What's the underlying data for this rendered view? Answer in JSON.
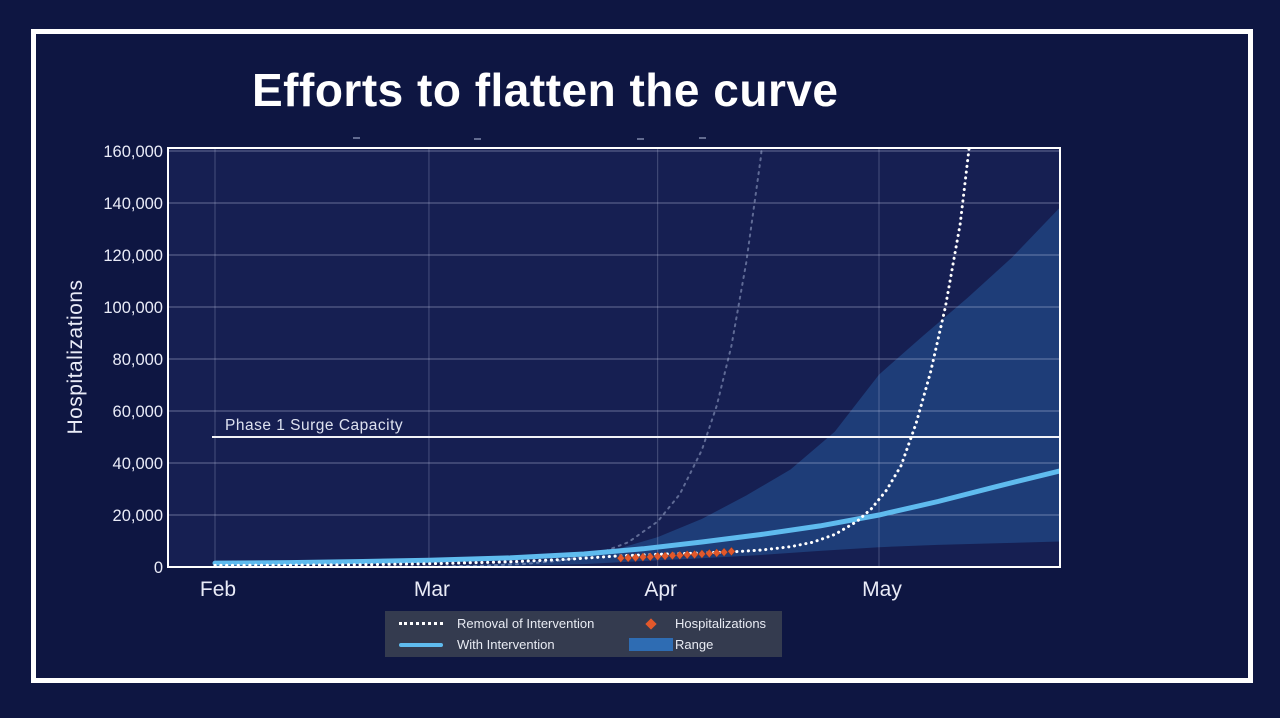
{
  "slide": {
    "title": "Efforts to flatten the curve"
  },
  "chart_data": {
    "type": "line",
    "title": "Efforts to flatten the curve",
    "xlabel": "",
    "ylabel": "Hospitalizations",
    "ylim": [
      0,
      160000
    ],
    "grid": true,
    "legend_position": "bottom",
    "y_ticks": [
      {
        "value": 0,
        "label": "0"
      },
      {
        "value": 20000,
        "label": "20,000"
      },
      {
        "value": 40000,
        "label": "40,000"
      },
      {
        "value": 60000,
        "label": "60,000"
      },
      {
        "value": 80000,
        "label": "80,000"
      },
      {
        "value": 100000,
        "label": "100,000"
      },
      {
        "value": 120000,
        "label": "120,000"
      },
      {
        "value": 140000,
        "label": "140,000"
      },
      {
        "value": 160000,
        "label": "160,000"
      }
    ],
    "x_ticks": [
      {
        "day": 0,
        "label": "Feb"
      },
      {
        "day": 29,
        "label": "Mar"
      },
      {
        "day": 60,
        "label": "Apr"
      },
      {
        "day": 90,
        "label": "May"
      }
    ],
    "surge_line": {
      "label": "Phase 1 Surge Capacity",
      "value": 50000
    },
    "series": [
      {
        "id": "range",
        "name": "Range",
        "type": "area",
        "upper": [
          [
            29,
            300
          ],
          [
            38,
            1200
          ],
          [
            46,
            3000
          ],
          [
            54,
            6500
          ],
          [
            60,
            11500
          ],
          [
            66,
            18500
          ],
          [
            72,
            27500
          ],
          [
            78,
            37500
          ],
          [
            84,
            52000
          ],
          [
            90,
            74000
          ],
          [
            96,
            89000
          ],
          [
            102,
            103500
          ],
          [
            108,
            119000
          ],
          [
            114.6,
            138500
          ]
        ],
        "lower": [
          [
            29,
            0
          ],
          [
            40,
            400
          ],
          [
            50,
            1100
          ],
          [
            58,
            2300
          ],
          [
            66,
            3400
          ],
          [
            74,
            4600
          ],
          [
            82,
            6200
          ],
          [
            90,
            7600
          ],
          [
            98,
            8500
          ],
          [
            106,
            9100
          ],
          [
            114.6,
            9800
          ]
        ]
      },
      {
        "id": "ghost_removal",
        "name": "Removal of Intervention (ghost)",
        "type": "line",
        "points": [
          [
            0,
            3
          ],
          [
            10,
            12
          ],
          [
            20,
            50
          ],
          [
            30,
            210
          ],
          [
            36,
            500
          ],
          [
            42,
            1200
          ],
          [
            47,
            2500
          ],
          [
            52,
            5200
          ],
          [
            56,
            9500
          ],
          [
            60,
            17500
          ],
          [
            63,
            28000
          ],
          [
            66,
            45000
          ],
          [
            68,
            62000
          ],
          [
            70,
            85000
          ],
          [
            72,
            117000
          ],
          [
            74,
            158000
          ],
          [
            74.8,
            185000
          ]
        ]
      },
      {
        "id": "with_intervention",
        "name": "With Intervention",
        "type": "line",
        "points": [
          [
            0,
            1500
          ],
          [
            10,
            1700
          ],
          [
            20,
            2100
          ],
          [
            29,
            2600
          ],
          [
            40,
            3500
          ],
          [
            50,
            5000
          ],
          [
            58,
            7000
          ],
          [
            66,
            9600
          ],
          [
            74,
            12500
          ],
          [
            82,
            15800
          ],
          [
            90,
            20000
          ],
          [
            98,
            25200
          ],
          [
            106,
            31000
          ],
          [
            114.6,
            37000
          ]
        ]
      },
      {
        "id": "removal",
        "name": "Removal of Intervention",
        "type": "line",
        "points": [
          [
            0,
            600
          ],
          [
            10,
            700
          ],
          [
            20,
            900
          ],
          [
            30,
            1300
          ],
          [
            40,
            2000
          ],
          [
            48,
            3000
          ],
          [
            55,
            4300
          ],
          [
            60,
            4900
          ],
          [
            65,
            5300
          ],
          [
            70,
            5800
          ],
          [
            74,
            6500
          ],
          [
            78,
            7800
          ],
          [
            81,
            9500
          ],
          [
            84,
            12500
          ],
          [
            87,
            17500
          ],
          [
            89,
            22500
          ],
          [
            91,
            29500
          ],
          [
            93,
            39000
          ],
          [
            95,
            55000
          ],
          [
            97,
            75000
          ],
          [
            99,
            100000
          ],
          [
            101,
            132000
          ],
          [
            103.2,
            185000
          ]
        ]
      },
      {
        "id": "hospitalizations",
        "name": "Hospitalizations",
        "type": "points",
        "points": [
          [
            55,
            3400
          ],
          [
            56,
            3500
          ],
          [
            57,
            3600
          ],
          [
            58,
            3800
          ],
          [
            59,
            3900
          ],
          [
            60,
            4100
          ],
          [
            61,
            4200
          ],
          [
            62,
            4400
          ],
          [
            63,
            4500
          ],
          [
            64,
            4700
          ],
          [
            65,
            4800
          ],
          [
            66,
            5000
          ],
          [
            67,
            5200
          ],
          [
            68,
            5400
          ],
          [
            69,
            5700
          ],
          [
            70,
            6000
          ]
        ]
      }
    ]
  },
  "legend": {
    "items": [
      {
        "label": "Removal of Intervention",
        "swatch": "dotted-line"
      },
      {
        "label": "Hospitalizations",
        "swatch": "orange-diamond"
      },
      {
        "label": "With Intervention",
        "swatch": "blue-line"
      },
      {
        "label": "Range",
        "swatch": "blue-rect"
      }
    ]
  },
  "colors": {
    "slide_bg": "#0e1642",
    "plot_bg": "#161f52",
    "frame": "#ffffff",
    "range_fill": "#1e3d78",
    "grid": "rgba(200,206,235,0.45)",
    "grid_vertical": "rgba(200,206,235,0.28)",
    "intervention_line": "#5fbbee",
    "removal_line": "#ffffff",
    "ghost_line": "rgba(168,182,216,0.5)",
    "points_fill": "#e2582b",
    "surge_line": "#f2f3f8",
    "tick_text": "#e9ebf7",
    "surge_text": "#dde1ef",
    "legend_bg": "#343b4f",
    "title_text": "#ffffff"
  }
}
